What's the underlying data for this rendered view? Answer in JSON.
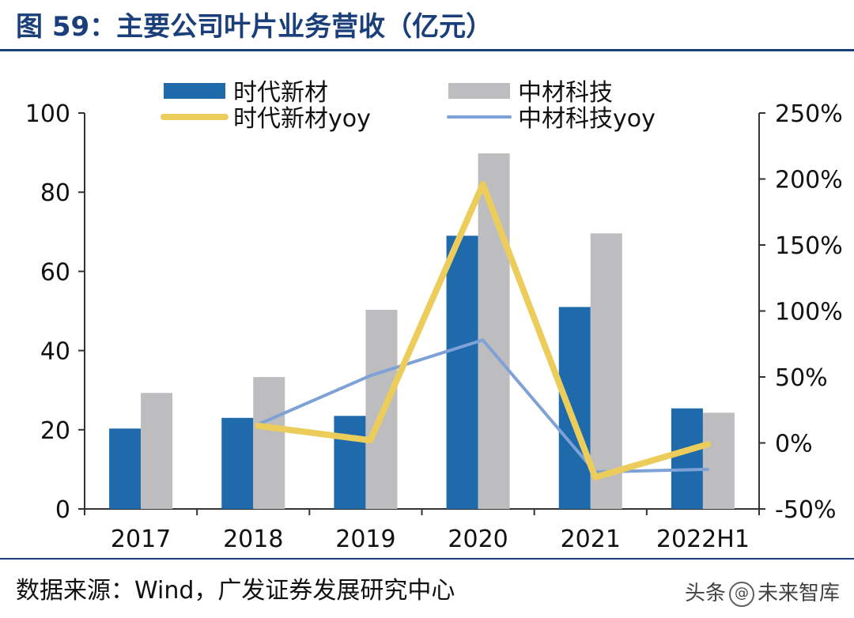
{
  "title": "图 59：主要公司叶片业务营收（亿元）",
  "source": "数据来源：Wind，广发证券发展研究中心",
  "watermark": {
    "prefix": "头条",
    "symbol": "@",
    "name": "未来智库"
  },
  "colors": {
    "blue_bar": "#1f6aab",
    "gray_bar": "#bdbdbf",
    "yellow_line": "#eccd5c",
    "blue_line": "#7ea1d6",
    "title": "#1a3f7a"
  },
  "chart_data": {
    "type": "bar",
    "categories": [
      "2017",
      "2018",
      "2019",
      "2020",
      "2021",
      "2022H1"
    ],
    "series": [
      {
        "name": "时代新材",
        "type": "bar",
        "axis": "left",
        "values": [
          20.3,
          23.0,
          23.5,
          69.0,
          51.0,
          25.4
        ]
      },
      {
        "name": "中材科技",
        "type": "bar",
        "axis": "left",
        "values": [
          29.3,
          33.3,
          50.3,
          89.8,
          69.6,
          24.3
        ]
      },
      {
        "name": "时代新材yoy",
        "type": "line",
        "axis": "right",
        "values": [
          null,
          13,
          2,
          196,
          -26,
          -1
        ]
      },
      {
        "name": "中材科技yoy",
        "type": "line",
        "axis": "right",
        "values": [
          null,
          14,
          51,
          78,
          -22,
          -20
        ]
      }
    ],
    "left_axis": {
      "ylim": [
        0,
        100
      ],
      "ticks": [
        "0",
        "20",
        "40",
        "60",
        "80",
        "100"
      ],
      "tick_values": [
        0,
        20,
        40,
        60,
        80,
        100
      ]
    },
    "right_axis": {
      "ylim": [
        -50,
        250
      ],
      "ticks": [
        "-50%",
        "0%",
        "50%",
        "100%",
        "150%",
        "200%",
        "250%"
      ],
      "tick_values": [
        -50,
        0,
        50,
        100,
        150,
        200,
        250
      ]
    },
    "legend": [
      {
        "label": "时代新材",
        "kind": "bar",
        "color": "#1f6aab"
      },
      {
        "label": "中材科技",
        "kind": "bar",
        "color": "#bdbdbf"
      },
      {
        "label": "时代新材yoy",
        "kind": "line",
        "color": "#eccd5c"
      },
      {
        "label": "中材科技yoy",
        "kind": "line",
        "color": "#7ea1d6"
      }
    ],
    "legend_position": "top",
    "grid": false
  }
}
